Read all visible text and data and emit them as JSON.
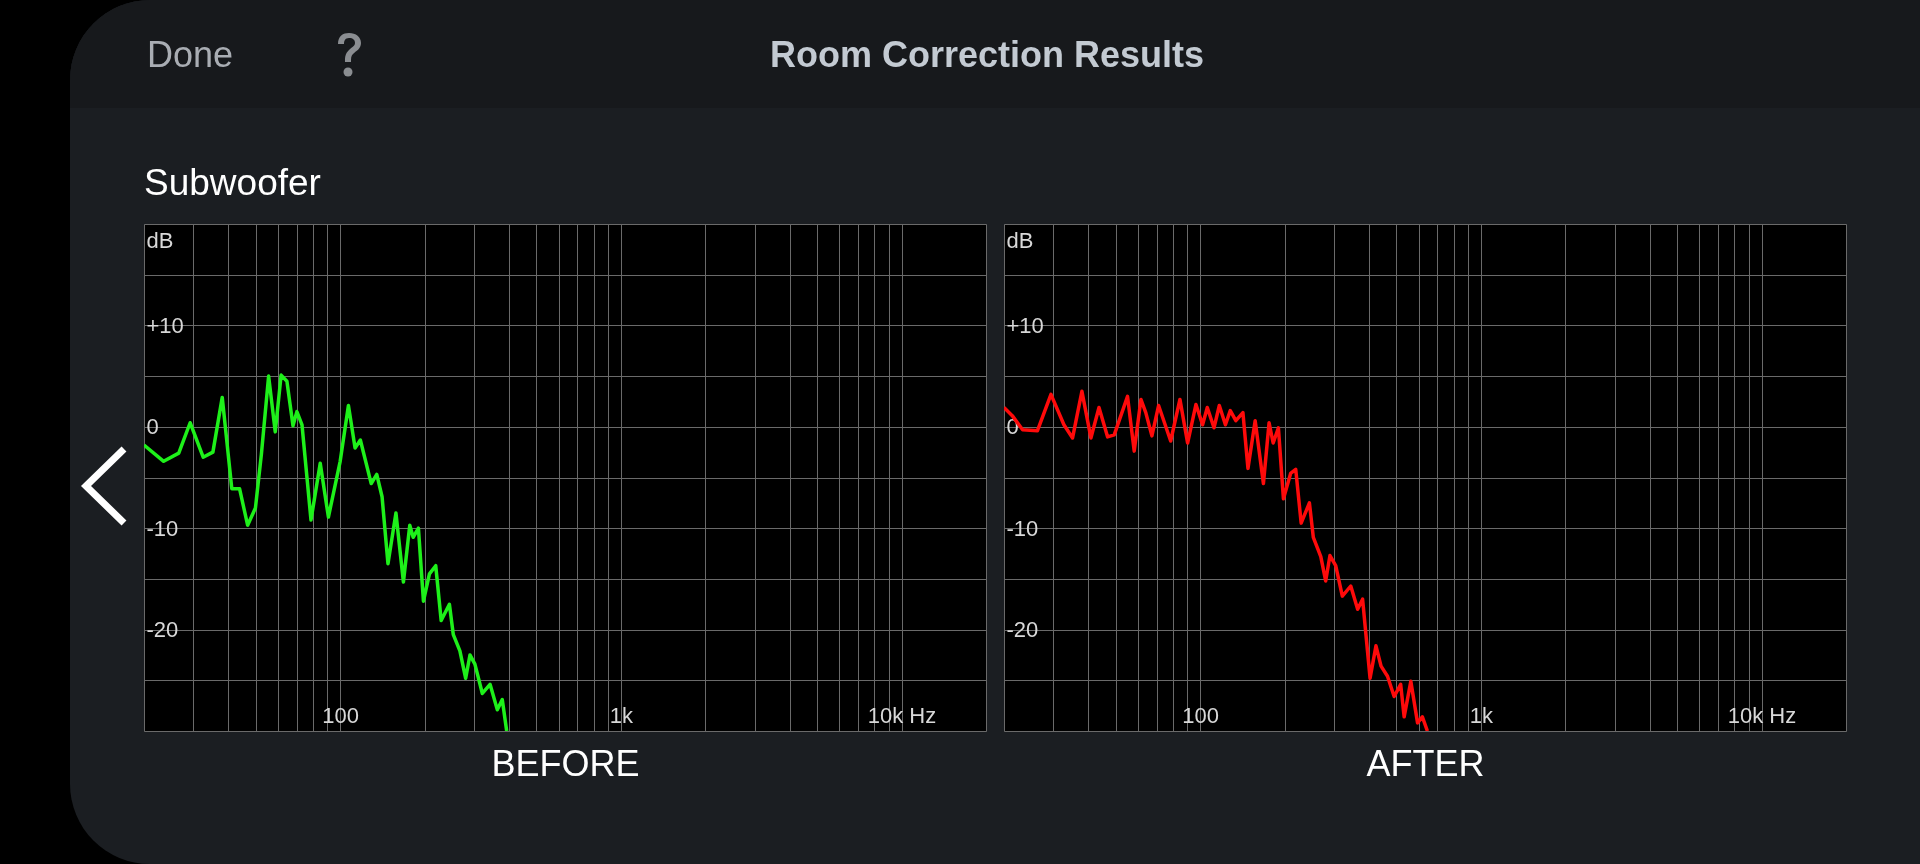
{
  "chart_data": [
    {
      "type": "line",
      "annotations": [
        "Done",
        "Room Correction Results",
        "Subwoofer"
      ],
      "ylabel": "dB",
      "xlabel": "BEFORE",
      "color": "#1ef01a",
      "log": "x",
      "grid": true,
      "x": [
        20,
        23.5,
        26.6,
        29.2,
        32.5,
        35.2,
        38,
        41.1,
        43.8,
        46.8,
        49.9,
        52.4,
        55.6,
        58.7,
        61.6,
        64.6,
        67.9,
        70.1,
        73.1,
        78.7,
        84.9,
        90.8,
        100,
        107,
        113,
        118,
        129,
        135,
        141,
        148,
        158,
        168,
        177,
        182,
        190,
        198,
        208,
        219,
        229,
        245,
        253,
        267,
        280,
        290,
        302,
        321,
        342,
        363,
        378,
        392
      ],
      "values": [
        -1.8,
        -3.4,
        -2.6,
        0.4,
        -3,
        -2.5,
        2.9,
        -6.1,
        -6.1,
        -9.7,
        -8,
        -2.7,
        5,
        -0.5,
        5.1,
        4.5,
        0.1,
        1.5,
        0.2,
        -9.2,
        -3.6,
        -8.9,
        -3.4,
        2.1,
        -2.1,
        -1.3,
        -5.6,
        -4.7,
        -6.9,
        -13.5,
        -8.5,
        -15.3,
        -9.7,
        -10.9,
        -10,
        -17.2,
        -14.5,
        -13.7,
        -19.1,
        -17.5,
        -20.5,
        -22.1,
        -24.8,
        -22.5,
        -23.4,
        -26.3,
        -25.4,
        -27.9,
        -26.9,
        -30
      ],
      "xlim": [
        20,
        20000
      ],
      "xticks": [
        {
          "value": 20,
          "label": null
        },
        {
          "value": 30,
          "label": null
        },
        {
          "value": 40,
          "label": null
        },
        {
          "value": 50,
          "label": null
        },
        {
          "value": 60,
          "label": null
        },
        {
          "value": 70,
          "label": null
        },
        {
          "value": 80,
          "label": null
        },
        {
          "value": 90,
          "label": null
        },
        100,
        {
          "value": 200,
          "label": null
        },
        {
          "value": 300,
          "label": null
        },
        {
          "value": 400,
          "label": null
        },
        {
          "value": 500,
          "label": null
        },
        {
          "value": 600,
          "label": null
        },
        {
          "value": 700,
          "label": null
        },
        {
          "value": 800,
          "label": null
        },
        {
          "value": 900,
          "label": null
        },
        {
          "value": 1000,
          "label": "1k"
        },
        {
          "value": 2000,
          "label": null
        },
        {
          "value": 3000,
          "label": null
        },
        {
          "value": 4000,
          "label": null
        },
        {
          "value": 5000,
          "label": null
        },
        {
          "value": 6000,
          "label": null
        },
        {
          "value": 7000,
          "label": null
        },
        {
          "value": 8000,
          "label": null
        },
        {
          "value": 9000,
          "label": null
        },
        {
          "value": 10000,
          "label": "10k Hz"
        },
        {
          "value": 20000,
          "label": null
        }
      ],
      "ylim": [
        -30,
        20
      ],
      "yticks": [
        {
          "value": 20,
          "label": null
        },
        {
          "value": 15,
          "label": null
        },
        {
          "value": 10,
          "label": "+10"
        },
        {
          "value": 5,
          "label": null
        },
        0,
        {
          "value": -5,
          "label": null
        },
        -10,
        {
          "value": -15,
          "label": null
        },
        -20,
        {
          "value": -25,
          "label": null
        },
        {
          "value": -30,
          "label": null
        }
      ]
    },
    {
      "type": "line",
      "ylabel": "dB",
      "xlabel": "AFTER",
      "color": "#ff0a0a",
      "log": "x",
      "grid": true,
      "x": [
        20,
        21.4,
        23.3,
        26.3,
        29.4,
        32.7,
        35.1,
        37.9,
        40.8,
        43.6,
        46.8,
        49.4,
        55.1,
        58.2,
        61.5,
        64,
        67.3,
        71.1,
        78.5,
        84.7,
        90.2,
        96.6,
        102,
        106,
        112,
        117,
        123,
        128,
        134,
        142,
        148,
        157,
        168,
        176,
        182,
        190,
        198,
        210,
        219,
        229,
        245,
        253,
        269,
        280,
        290,
        304,
        321,
        344,
        364,
        379,
        403,
        423,
        441,
        465,
        491,
        518,
        533,
        563,
        595,
        619,
        645
      ],
      "values": [
        1.9,
        1.1,
        -0.3,
        -0.4,
        3.2,
        0.2,
        -1.1,
        3.5,
        -1.1,
        1.9,
        -1,
        -0.8,
        3,
        -2.4,
        2.7,
        1.4,
        -0.9,
        2.1,
        -1.4,
        2.7,
        -1.6,
        2.2,
        0.2,
        1.9,
        -0.1,
        2.1,
        0.2,
        1.6,
        0.6,
        1.4,
        -4.1,
        0.6,
        -5.6,
        0.4,
        -1.6,
        -0.1,
        -7.1,
        -4.6,
        -4.2,
        -9.5,
        -7.5,
        -10.9,
        -12.8,
        -15.2,
        -12.7,
        -13.7,
        -16.7,
        -15.7,
        -18,
        -17,
        -24.8,
        -21.6,
        -23.6,
        -24.6,
        -26.6,
        -25.4,
        -28.6,
        -25.1,
        -29.2,
        -28.6,
        -30
      ],
      "xlim": [
        20,
        20000
      ],
      "xticks": [
        {
          "value": 20,
          "label": null
        },
        {
          "value": 30,
          "label": null
        },
        {
          "value": 40,
          "label": null
        },
        {
          "value": 50,
          "label": null
        },
        {
          "value": 60,
          "label": null
        },
        {
          "value": 70,
          "label": null
        },
        {
          "value": 80,
          "label": null
        },
        {
          "value": 90,
          "label": null
        },
        100,
        {
          "value": 200,
          "label": null
        },
        {
          "value": 300,
          "label": null
        },
        {
          "value": 400,
          "label": null
        },
        {
          "value": 500,
          "label": null
        },
        {
          "value": 600,
          "label": null
        },
        {
          "value": 700,
          "label": null
        },
        {
          "value": 800,
          "label": null
        },
        {
          "value": 900,
          "label": null
        },
        {
          "value": 1000,
          "label": "1k"
        },
        {
          "value": 2000,
          "label": null
        },
        {
          "value": 3000,
          "label": null
        },
        {
          "value": 4000,
          "label": null
        },
        {
          "value": 5000,
          "label": null
        },
        {
          "value": 6000,
          "label": null
        },
        {
          "value": 7000,
          "label": null
        },
        {
          "value": 8000,
          "label": null
        },
        {
          "value": 9000,
          "label": null
        },
        {
          "value": 10000,
          "label": "10k Hz"
        },
        {
          "value": 20000,
          "label": null
        }
      ],
      "ylim": [
        -30,
        20
      ],
      "yticks": [
        {
          "value": 20,
          "label": null
        },
        {
          "value": 15,
          "label": null
        },
        {
          "value": 10,
          "label": "+10"
        },
        {
          "value": 5,
          "label": null
        },
        0,
        {
          "value": -5,
          "label": null
        },
        -10,
        {
          "value": -15,
          "label": null
        },
        -20,
        {
          "value": -25,
          "label": null
        },
        {
          "value": -30,
          "label": null
        }
      ]
    }
  ]
}
